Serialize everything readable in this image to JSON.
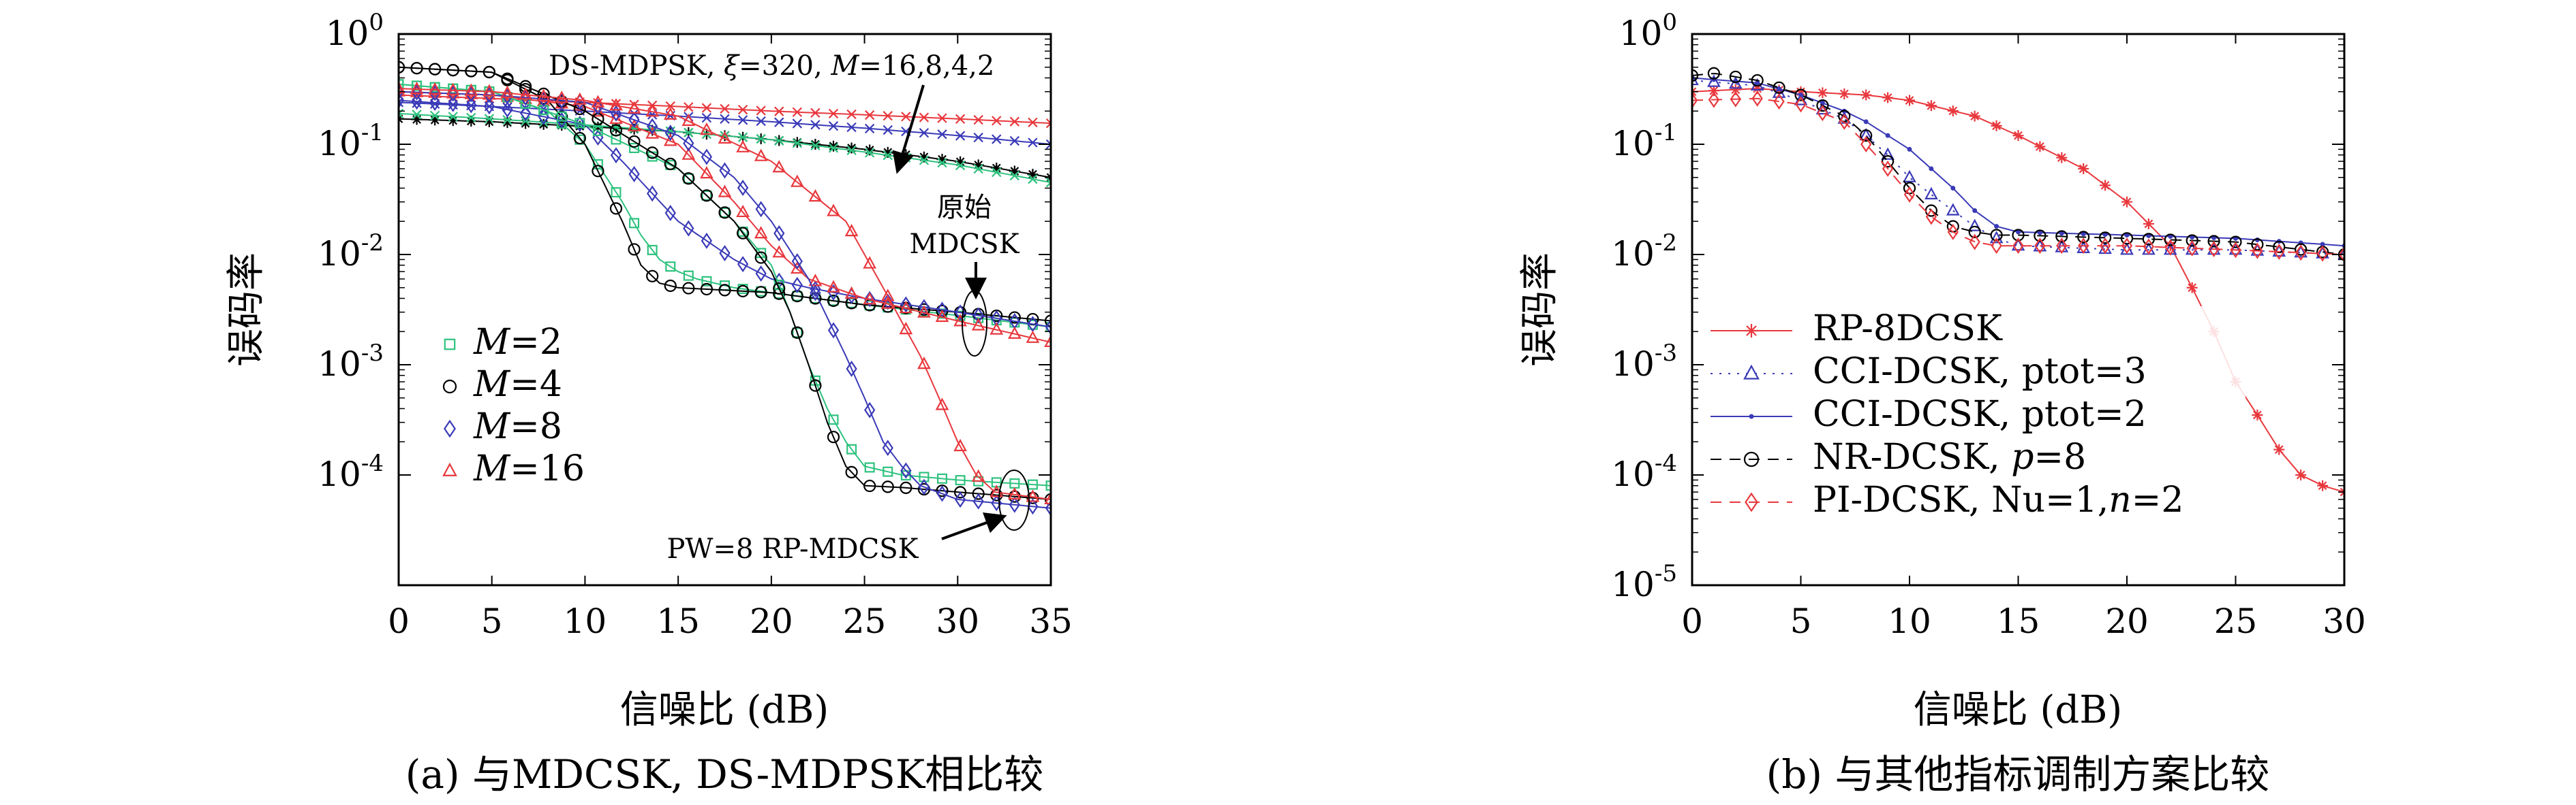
{
  "chart_data": [
    {
      "type": "line",
      "panel": "a",
      "caption": "(a) 与MDCSK, DS-MDPSK相比较",
      "xlabel": "信噪比 (dB)",
      "ylabel": "误码率",
      "xlim": [
        0,
        35
      ],
      "ylim": [
        1e-05,
        1
      ],
      "yscale": "log",
      "xticks": [
        "0",
        "5",
        "10",
        "15",
        "20",
        "25",
        "30",
        "35"
      ],
      "yticks": [
        {
          "base": "10",
          "exp": "0"
        },
        {
          "base": "10",
          "exp": "-1"
        },
        {
          "base": "10",
          "exp": "-2"
        },
        {
          "base": "10",
          "exp": "-3"
        },
        {
          "base": "10",
          "exp": "-4"
        }
      ],
      "grid": false,
      "legend_position": "bottom-left",
      "legend": [
        {
          "label": "M=2",
          "var": "M",
          "eq": "=2",
          "marker": "square",
          "color": "#2ec27e"
        },
        {
          "label": "M=4",
          "var": "M",
          "eq": "=4",
          "marker": "circle",
          "color": "#000000"
        },
        {
          "label": "M=8",
          "var": "M",
          "eq": "=8",
          "marker": "diamond",
          "color": "#3a3ab8"
        },
        {
          "label": "M=16",
          "var": "M",
          "eq": "=16",
          "marker": "triangle",
          "color": "#e8383d"
        }
      ],
      "annotations": {
        "ds": "DS-MDPSK, ξ=320, M=16,8,4,2",
        "ds_a": "DS-MDPSK, ",
        "ds_xi": "ξ",
        "ds_b": "=320, ",
        "ds_m": "M",
        "ds_c": "=16,8,4,2",
        "orig1": "原始",
        "orig2": "MDCSK",
        "pw": "PW=8 RP-MDCSK"
      },
      "series": [
        {
          "name": "DS-MDPSK M=16",
          "group": "ds",
          "color": "#e8383d",
          "marker": "x",
          "x": [
            0,
            5,
            10,
            15,
            20,
            25,
            30,
            35
          ],
          "y": [
            0.28,
            0.26,
            0.24,
            0.22,
            0.2,
            0.185,
            0.17,
            0.155
          ]
        },
        {
          "name": "DS-MDPSK M=8",
          "group": "ds",
          "color": "#3a3ab8",
          "marker": "x",
          "x": [
            0,
            5,
            10,
            15,
            20,
            25,
            30,
            35
          ],
          "y": [
            0.24,
            0.22,
            0.2,
            0.18,
            0.16,
            0.14,
            0.12,
            0.1
          ]
        },
        {
          "name": "DS-MDPSK M=4",
          "group": "ds",
          "color": "#000000",
          "marker": "star",
          "x": [
            0,
            5,
            10,
            15,
            20,
            25,
            30,
            35
          ],
          "y": [
            0.17,
            0.16,
            0.145,
            0.13,
            0.11,
            0.09,
            0.07,
            0.05
          ]
        },
        {
          "name": "DS-MDPSK M=2",
          "group": "ds",
          "color": "#2ec27e",
          "marker": "x",
          "x": [
            0,
            5,
            10,
            15,
            20,
            25,
            30,
            35
          ],
          "y": [
            0.19,
            0.17,
            0.15,
            0.13,
            0.11,
            0.085,
            0.065,
            0.045
          ]
        },
        {
          "name": "MDCSK M=2",
          "group": "orig",
          "color": "#2ec27e",
          "marker": "square",
          "x": [
            0,
            5,
            8,
            10,
            12,
            13,
            14,
            15,
            16,
            18,
            20,
            25,
            30,
            35
          ],
          "y": [
            0.35,
            0.3,
            0.2,
            0.1,
            0.03,
            0.015,
            0.009,
            0.007,
            0.006,
            0.005,
            0.0045,
            0.0035,
            0.0028,
            0.0022
          ]
        },
        {
          "name": "MDCSK M=4",
          "group": "orig",
          "color": "#000000",
          "marker": "circle",
          "x": [
            0,
            5,
            8,
            10,
            12,
            13,
            14,
            15,
            18,
            20,
            25,
            30,
            35
          ],
          "y": [
            0.5,
            0.45,
            0.25,
            0.1,
            0.02,
            0.008,
            0.0055,
            0.005,
            0.0047,
            0.0045,
            0.0035,
            0.003,
            0.0025
          ]
        },
        {
          "name": "MDCSK M=8",
          "group": "orig",
          "color": "#3a3ab8",
          "marker": "diamond",
          "x": [
            0,
            5,
            10,
            12,
            15,
            18,
            20,
            22,
            25,
            30,
            35
          ],
          "y": [
            0.25,
            0.22,
            0.15,
            0.07,
            0.02,
            0.009,
            0.006,
            0.005,
            0.004,
            0.003,
            0.0022
          ]
        },
        {
          "name": "MDCSK M=16",
          "group": "orig",
          "color": "#e8383d",
          "marker": "triangle",
          "x": [
            0,
            5,
            10,
            15,
            18,
            20,
            22,
            25,
            30,
            35
          ],
          "y": [
            0.3,
            0.28,
            0.22,
            0.1,
            0.03,
            0.012,
            0.006,
            0.004,
            0.0025,
            0.0016
          ]
        },
        {
          "name": "RP-MDCSK M=2",
          "group": "rp",
          "color": "#2ec27e",
          "marker": "square",
          "x": [
            0,
            5,
            10,
            15,
            18,
            20,
            21,
            22,
            23,
            24,
            25,
            27,
            30,
            35
          ],
          "y": [
            0.35,
            0.3,
            0.15,
            0.06,
            0.02,
            0.008,
            0.003,
            0.001,
            0.0004,
            0.0002,
            0.00012,
            0.0001,
            9e-05,
            8e-05
          ]
        },
        {
          "name": "RP-MDCSK M=4",
          "group": "rp",
          "color": "#000000",
          "marker": "circle",
          "x": [
            0,
            5,
            10,
            15,
            18,
            20,
            21,
            22,
            23,
            24,
            25,
            27,
            30,
            35
          ],
          "y": [
            0.5,
            0.45,
            0.2,
            0.06,
            0.02,
            0.007,
            0.003,
            0.001,
            0.0003,
            0.00012,
            8e-05,
            7.7e-05,
            7e-05,
            6e-05
          ]
        },
        {
          "name": "RP-MDCSK M=8",
          "group": "rp",
          "color": "#3a3ab8",
          "marker": "diamond",
          "x": [
            0,
            5,
            10,
            15,
            18,
            20,
            22,
            24,
            25,
            26,
            27,
            28,
            30,
            35
          ],
          "y": [
            0.3,
            0.28,
            0.24,
            0.12,
            0.05,
            0.02,
            0.006,
            0.0012,
            0.0005,
            0.0002,
            0.00012,
            8e-05,
            6e-05,
            5e-05
          ]
        },
        {
          "name": "RP-MDCSK M=16",
          "group": "rp",
          "color": "#e8383d",
          "marker": "triangle",
          "x": [
            0,
            5,
            10,
            15,
            20,
            24,
            26,
            28,
            29,
            30,
            31,
            32,
            35
          ],
          "y": [
            0.32,
            0.3,
            0.25,
            0.18,
            0.07,
            0.02,
            0.005,
            0.0012,
            0.0005,
            0.0002,
            0.0001,
            7e-05,
            6e-05
          ]
        }
      ]
    },
    {
      "type": "line",
      "panel": "b",
      "caption": "(b) 与其他指标调制方案比较",
      "xlabel": "信噪比 (dB)",
      "ylabel": "误码率",
      "xlim": [
        0,
        30
      ],
      "ylim": [
        1e-05,
        1
      ],
      "yscale": "log",
      "xticks": [
        "0",
        "5",
        "10",
        "15",
        "20",
        "25",
        "30"
      ],
      "yticks": [
        {
          "base": "10",
          "exp": "0"
        },
        {
          "base": "10",
          "exp": "-1"
        },
        {
          "base": "10",
          "exp": "-2"
        },
        {
          "base": "10",
          "exp": "-3"
        },
        {
          "base": "10",
          "exp": "-4"
        },
        {
          "base": "10",
          "exp": "-5"
        }
      ],
      "grid": false,
      "legend_position": "bottom-left",
      "series": [
        {
          "name": "RP-8DCSK",
          "color": "#e8383d",
          "marker": "star",
          "dash": "",
          "x": [
            0,
            3,
            5,
            8,
            10,
            13,
            15,
            18,
            20,
            22,
            23,
            24,
            25,
            26,
            27,
            28,
            29,
            30
          ],
          "y": [
            0.3,
            0.32,
            0.3,
            0.28,
            0.25,
            0.18,
            0.12,
            0.06,
            0.03,
            0.012,
            0.005,
            0.002,
            0.0007,
            0.00035,
            0.00017,
            0.0001,
            8e-05,
            7e-05
          ]
        },
        {
          "name": "CCI-DCSK, ptot=3",
          "color": "#3a3ab8",
          "marker": "triangle",
          "dash": "3,10",
          "x": [
            0,
            3,
            5,
            7,
            8,
            9,
            10,
            11,
            12,
            13,
            14,
            15,
            20,
            25,
            30
          ],
          "y": [
            0.38,
            0.34,
            0.25,
            0.17,
            0.12,
            0.08,
            0.05,
            0.035,
            0.025,
            0.018,
            0.014,
            0.012,
            0.011,
            0.011,
            0.01
          ]
        },
        {
          "name": "CCI-DCSK, ptot=2",
          "color": "#3a3ab8",
          "marker": "dot",
          "dash": "",
          "x": [
            0,
            3,
            5,
            7,
            8,
            9,
            10,
            11,
            12,
            13,
            14,
            15,
            20,
            25,
            30
          ],
          "y": [
            0.4,
            0.36,
            0.28,
            0.2,
            0.16,
            0.12,
            0.09,
            0.06,
            0.04,
            0.025,
            0.018,
            0.016,
            0.015,
            0.014,
            0.012
          ]
        },
        {
          "name": "NR-DCSK, p=8",
          "color": "#000000",
          "marker": "circle",
          "dash": "16,12",
          "x": [
            0,
            1,
            3,
            5,
            7,
            8,
            9,
            10,
            11,
            12,
            13,
            14,
            15,
            20,
            25,
            30
          ],
          "y": [
            0.42,
            0.44,
            0.38,
            0.28,
            0.18,
            0.12,
            0.07,
            0.04,
            0.025,
            0.018,
            0.016,
            0.015,
            0.015,
            0.014,
            0.013,
            0.01
          ]
        },
        {
          "name": "PI-DCSK, Nu=1,n=2",
          "color": "#e8383d",
          "marker": "diamond",
          "dash": "16,12",
          "x": [
            0,
            3,
            5,
            7,
            8,
            9,
            10,
            11,
            12,
            13,
            14,
            15,
            20,
            25,
            30
          ],
          "y": [
            0.25,
            0.26,
            0.23,
            0.16,
            0.1,
            0.06,
            0.035,
            0.022,
            0.016,
            0.013,
            0.012,
            0.012,
            0.012,
            0.011,
            0.01
          ]
        }
      ],
      "legend": [
        {
          "label": "RP-8DCSK",
          "text": "RP-8DCSK"
        },
        {
          "label": "CCI-DCSK, ptot=3",
          "text": "CCI-DCSK, ptot=3"
        },
        {
          "label": "CCI-DCSK, ptot=2",
          "text": "CCI-DCSK, ptot=2"
        },
        {
          "label": "NR-DCSK, p=8",
          "pre": "NR-DCSK, ",
          "var": "p",
          "post": "=8"
        },
        {
          "label": "PI-DCSK, Nu=1,n=2",
          "pre": "PI-DCSK, Nu=1,",
          "var": "n",
          "post": "=2"
        }
      ]
    }
  ]
}
